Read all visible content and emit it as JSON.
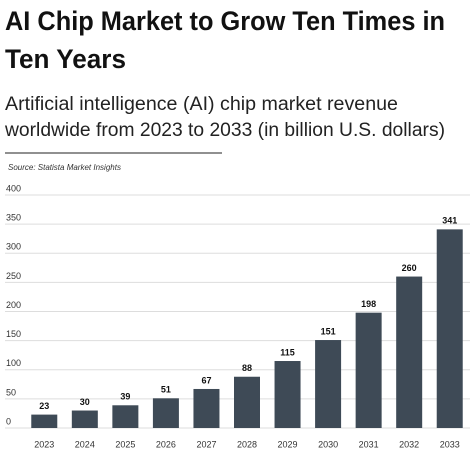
{
  "chart_data": {
    "type": "bar",
    "title": [
      "AI Chip Market to Grow Ten Times in",
      "Ten Years"
    ],
    "subtitle": [
      "Artificial intelligence (AI) chip market revenue",
      "worldwide from 2023 to 2033 (in billion U.S. dollars)"
    ],
    "source": "Source: Statista Market Insights",
    "categories": [
      "2023",
      "2024",
      "2025",
      "2026",
      "2027",
      "2028",
      "2029",
      "2030",
      "2031",
      "2032",
      "2033"
    ],
    "values": [
      23,
      30,
      39,
      51,
      67,
      88,
      115,
      151,
      198,
      260,
      341
    ],
    "color": "#3e4a56",
    "ylim": [
      0,
      400
    ],
    "yticks": [
      0,
      50,
      100,
      150,
      200,
      250,
      300,
      350,
      400
    ],
    "grid": true
  }
}
